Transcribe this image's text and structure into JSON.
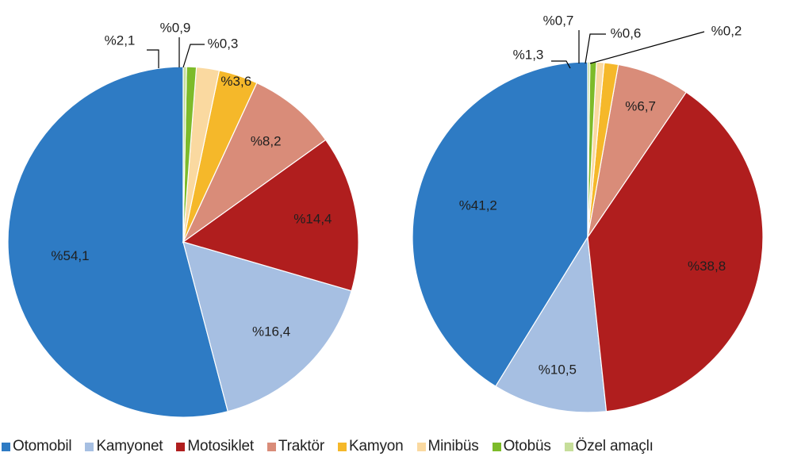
{
  "chart_data": [
    {
      "type": "pie",
      "categories": [
        "Otomobil",
        "Kamyonet",
        "Motosiklet",
        "Traktör",
        "Kamyon",
        "Minibüs",
        "Otobüs",
        "Özel amaçlı"
      ],
      "values": [
        54.1,
        16.4,
        14.4,
        8.2,
        3.6,
        2.1,
        0.9,
        0.3
      ],
      "labels": [
        "%54,1",
        "%16,4",
        "%14,4",
        "%8,2",
        "%3,6",
        "%2,1",
        "%0,9",
        "%0,3"
      ]
    },
    {
      "type": "pie",
      "categories": [
        "Otomobil",
        "Kamyonet",
        "Motosiklet",
        "Traktör",
        "Kamyon",
        "Minibüs",
        "Otobüs",
        "Özel amaçlı"
      ],
      "values": [
        41.2,
        10.5,
        38.8,
        6.7,
        1.3,
        0.7,
        0.6,
        0.2
      ],
      "labels": [
        "%41,2",
        "%10,5",
        "%38,8",
        "%6,7",
        "%1,3",
        "%0,7",
        "%0,6",
        "%0,2"
      ]
    }
  ],
  "legend": [
    {
      "label": "Otomobil",
      "color": "#2E7BC4"
    },
    {
      "label": "Kamyonet",
      "color": "#A6BFE2"
    },
    {
      "label": "Motosiklet",
      "color": "#B01E1E"
    },
    {
      "label": "Traktör",
      "color": "#D98C79"
    },
    {
      "label": "Kamyon",
      "color": "#F5B82A"
    },
    {
      "label": "Minibüs",
      "color": "#FAD9A0"
    },
    {
      "label": "Otobüs",
      "color": "#7DBB2A"
    },
    {
      "label": "Özel amaçlı",
      "color": "#C6DE9A"
    }
  ]
}
